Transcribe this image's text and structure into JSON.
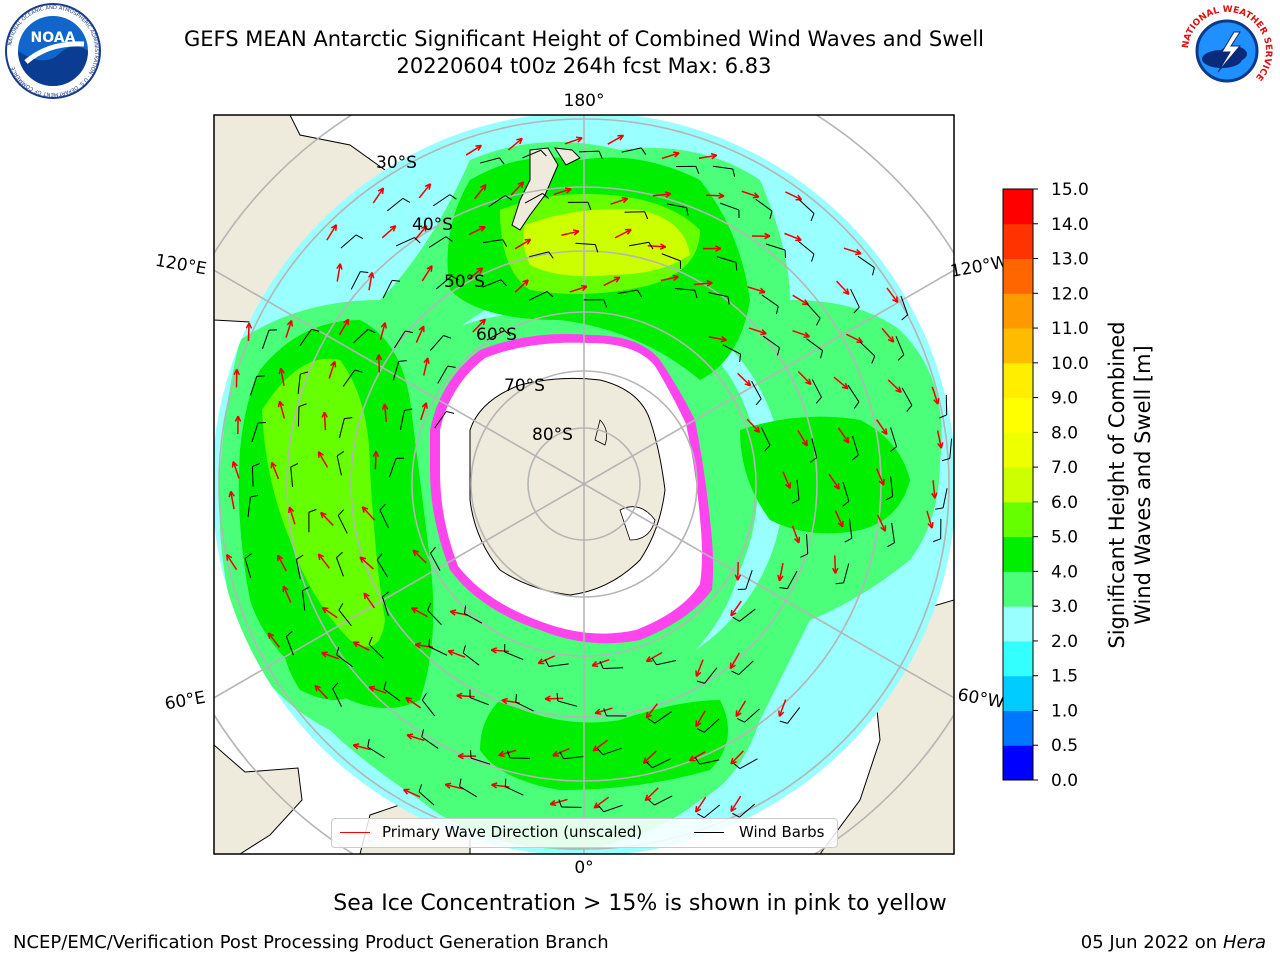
{
  "title": {
    "line1": "GEFS MEAN Antarctic Significant Height of Combined Wind Waves and Swell",
    "line2": "20220604 t00z 264h fcst   Max: 6.83"
  },
  "map": {
    "projection": "south-polar-stereographic",
    "longitude_labels": [
      "180°",
      "120°E",
      "120°W",
      "60°E",
      "60°W",
      "0°"
    ],
    "latitude_labels": [
      "30°S",
      "40°S",
      "50°S",
      "60°S",
      "70°S",
      "80°S"
    ],
    "colors": {
      "land": "#efebdc",
      "ice_interior": "#ffffff",
      "sea_ice_edge": "#ff44ee",
      "grid": "#b5b5b5",
      "arrow": "#ee0000",
      "barb": "#000000"
    }
  },
  "colorbar": {
    "label_line1": "Significant Height of Combined",
    "label_line2": "Wind Waves and Swell [m]",
    "ticks": [
      "0.0",
      "0.5",
      "1.0",
      "1.5",
      "2.0",
      "3.0",
      "4.0",
      "5.0",
      "6.0",
      "7.0",
      "8.0",
      "9.0",
      "10.0",
      "11.0",
      "12.0",
      "13.0",
      "14.0",
      "15.0"
    ],
    "colors": [
      "#0000ff",
      "#0077ff",
      "#00ccff",
      "#33ffff",
      "#99ffff",
      "#4cff7a",
      "#00ee00",
      "#66ff00",
      "#ccff00",
      "#eeff00",
      "#ffff00",
      "#ffee00",
      "#ffbb00",
      "#ff9900",
      "#ff6600",
      "#ff3300",
      "#ff0000"
    ]
  },
  "legend": {
    "wave_label": "Primary Wave Direction (unscaled)",
    "barb_label": "Wind Barbs"
  },
  "note": "Sea Ice Concentration > 15% is shown in pink to yellow",
  "footer": {
    "left": "NCEP/EMC/Verification Post Processing Product Generation Branch",
    "date": "05 Jun 2022 on",
    "machine": "Hera"
  },
  "logos": {
    "noaa_text": "NOAA",
    "noaa_ring": "NATIONAL OCEANIC AND ATMOSPHERIC ADMINISTRATION · U.S. DEPARTMENT OF COMMERCE",
    "nws_ring": "NATIONAL WEATHER SERVICE"
  }
}
